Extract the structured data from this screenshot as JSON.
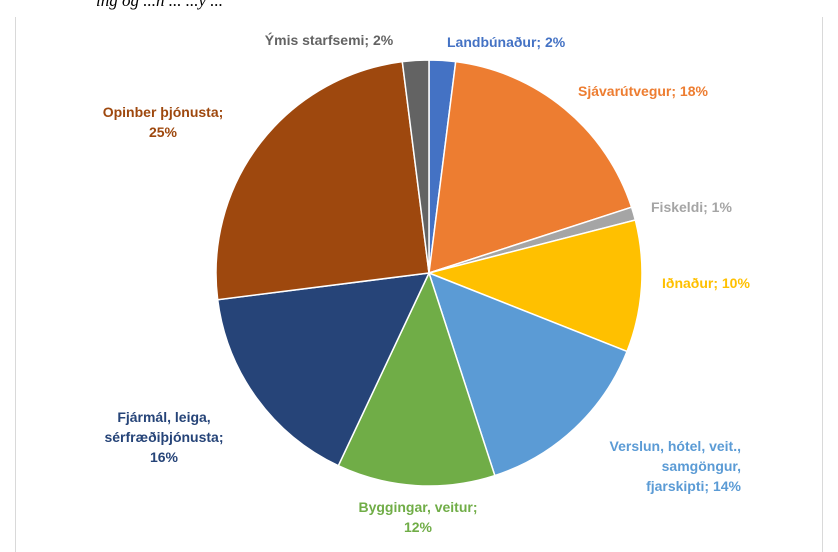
{
  "caption": "ing og ...n ... ...ý ...",
  "chart_data": {
    "type": "pie",
    "title": "",
    "label_separator": "; ",
    "slices": [
      {
        "label": "Landbúnaður",
        "value": 2,
        "pct_label": "2%",
        "color": "#4472c4"
      },
      {
        "label": "Sjávarútvegur",
        "value": 18,
        "pct_label": "18%",
        "color": "#ed7d31"
      },
      {
        "label": "Fiskeldi",
        "value": 1,
        "pct_label": "1%",
        "color": "#a5a5a5"
      },
      {
        "label": "Iðnaður",
        "value": 10,
        "pct_label": "10%",
        "color": "#ffc000"
      },
      {
        "label": "Verslun, hótel, veit., samgöngur, fjarskipti",
        "value": 14,
        "pct_label": "14%",
        "color": "#5b9bd5"
      },
      {
        "label": "Byggingar, veitur",
        "value": 12,
        "pct_label": "12%",
        "color": "#70ad47"
      },
      {
        "label": "Fjármál, leiga, sérfræðiþjónusta",
        "value": 16,
        "pct_label": "16%",
        "color": "#264478"
      },
      {
        "label": "Opinber þjónusta",
        "value": 25,
        "pct_label": "25%",
        "color": "#9e480e"
      },
      {
        "label": "Ýmis starfsemi",
        "value": 2,
        "pct_label": "2%",
        "color": "#636363"
      }
    ]
  }
}
